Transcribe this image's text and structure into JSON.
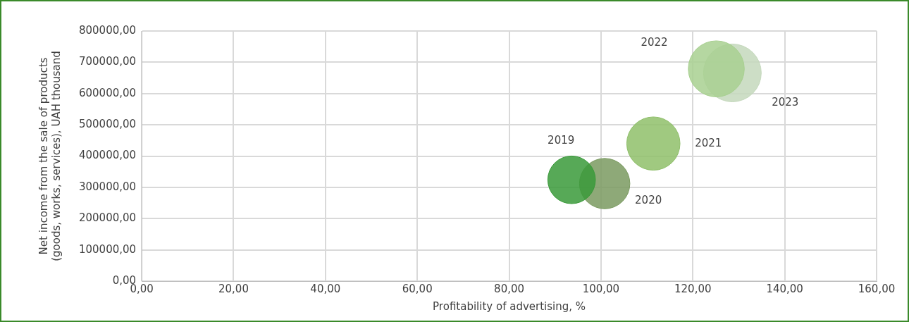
{
  "chart_data": {
    "type": "bubble",
    "xlabel": "Profitability of advertising, %",
    "ylabel": "Net income from the sale of products (goods, works, services), UAH thousand",
    "xlim": [
      0,
      160
    ],
    "xticks": [
      {
        "value": 0,
        "label": "0,00"
      },
      {
        "value": 20,
        "label": "20,00"
      },
      {
        "value": 40,
        "label": "40,00"
      },
      {
        "value": 60,
        "label": "60,00"
      },
      {
        "value": 80,
        "label": "80,00"
      },
      {
        "value": 100,
        "label": "100,00"
      },
      {
        "value": 120,
        "label": "120,00"
      },
      {
        "value": 140,
        "label": "140,00"
      },
      {
        "value": 160,
        "label": "160,00"
      }
    ],
    "ylim": [
      0,
      800000
    ],
    "yticks": [
      {
        "value": 0,
        "label": "0,00"
      },
      {
        "value": 100000,
        "label": "100000,00"
      },
      {
        "value": 200000,
        "label": "200000,00"
      },
      {
        "value": 300000,
        "label": "300000,00"
      },
      {
        "value": 400000,
        "label": "400000,00"
      },
      {
        "value": 500000,
        "label": "500000,00"
      },
      {
        "value": 600000,
        "label": "600000,00"
      },
      {
        "value": 700000,
        "label": "700000,00"
      },
      {
        "value": 800000,
        "label": "800000,00"
      }
    ],
    "grid": true,
    "legend": false,
    "series": [
      {
        "name": "2019",
        "color": "#3a9a3a",
        "x": [
          93.6
        ],
        "values": [
          324000
        ],
        "sizes": [
          0.68
        ]
      },
      {
        "name": "2020",
        "color": "#7a9a60",
        "x": [
          100.8
        ],
        "values": [
          312000
        ],
        "sizes": [
          0.76
        ]
      },
      {
        "name": "2021",
        "color": "#8fbf6a",
        "x": [
          111.4
        ],
        "values": [
          440000
        ],
        "sizes": [
          0.85
        ]
      },
      {
        "name": "2022",
        "color": "#a8d090",
        "x": [
          125.1
        ],
        "values": [
          679000
        ],
        "sizes": [
          0.94
        ]
      },
      {
        "name": "2023",
        "color": "#c4d8bc",
        "x": [
          128.6
        ],
        "values": [
          666000
        ],
        "sizes": [
          1
        ]
      }
    ]
  }
}
